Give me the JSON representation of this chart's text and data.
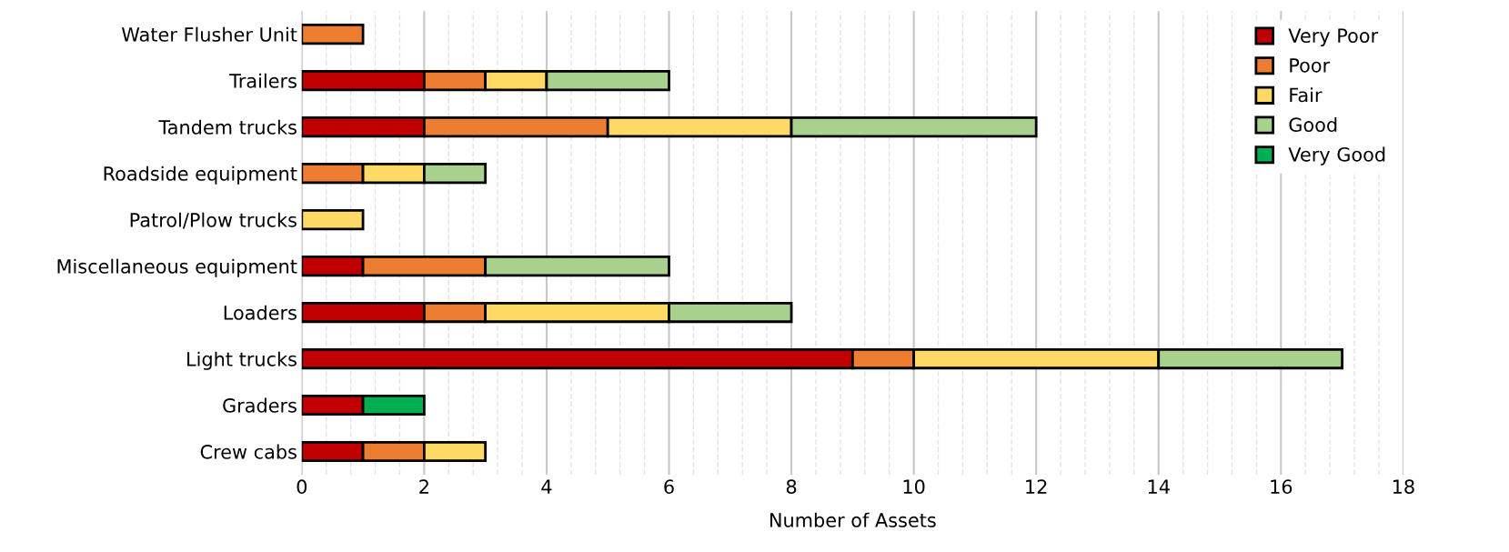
{
  "chart_data": {
    "type": "bar",
    "orientation": "horizontal",
    "stacked": true,
    "xlabel": "Number of Assets",
    "categories": [
      "Water Flusher Unit",
      "Trailers",
      "Tandem trucks",
      "Roadside equipment",
      "Patrol/Plow trucks",
      "Miscellaneous equipment",
      "Loaders",
      "Light trucks",
      "Graders",
      "Crew cabs"
    ],
    "series": [
      {
        "name": "Very Poor",
        "color": "#c00000",
        "values": [
          null,
          2,
          2,
          null,
          null,
          1,
          2,
          9,
          1,
          1
        ]
      },
      {
        "name": "Poor",
        "color": "#ed7d31",
        "values": [
          1,
          1,
          3,
          1,
          null,
          2,
          1,
          1,
          null,
          1
        ]
      },
      {
        "name": "Fair",
        "color": "#ffd966",
        "values": [
          null,
          1,
          3,
          1,
          1,
          null,
          3,
          4,
          null,
          1
        ]
      },
      {
        "name": "Good",
        "color": "#a9d18e",
        "values": [
          null,
          2,
          4,
          1,
          null,
          3,
          2,
          3,
          null,
          null
        ]
      },
      {
        "name": "Very Good",
        "color": "#00b050",
        "values": [
          null,
          null,
          null,
          null,
          null,
          null,
          null,
          null,
          1,
          null
        ]
      }
    ],
    "xlim": [
      0,
      18
    ],
    "xticks": [
      0,
      2,
      4,
      6,
      8,
      10,
      12,
      14,
      16,
      18
    ],
    "grid": "x",
    "legend": "top right"
  }
}
